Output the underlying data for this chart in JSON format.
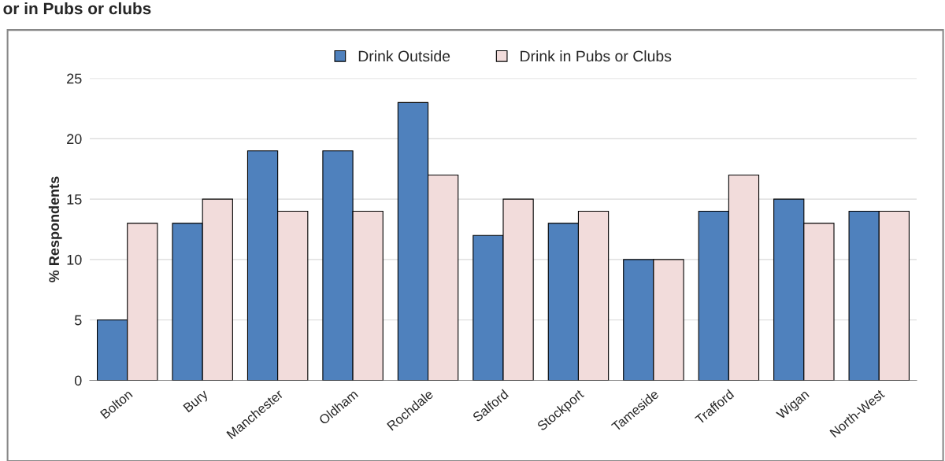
{
  "chart_data": {
    "type": "bar",
    "title": "or in Pubs or clubs",
    "ylabel": "% Respondents",
    "categories": [
      "Bolton",
      "Bury",
      "Manchester",
      "Oldham",
      "Rochdale",
      "Salford",
      "Stockport",
      "Tameside",
      "Trafford",
      "Wigan",
      "North-West"
    ],
    "series": [
      {
        "name": "Drink Outside",
        "color": "#4f81bd",
        "values": [
          5,
          13,
          19,
          19,
          23,
          12,
          13,
          10,
          14,
          15,
          14
        ]
      },
      {
        "name": "Drink in Pubs or Clubs",
        "color": "#f2dcdb",
        "values": [
          13,
          15,
          14,
          14,
          17,
          15,
          14,
          10,
          17,
          13,
          14
        ]
      }
    ],
    "ylim": [
      0,
      25
    ],
    "yticks": [
      0,
      5,
      10,
      15,
      20,
      25
    ],
    "grid": "y",
    "legend": "top"
  }
}
